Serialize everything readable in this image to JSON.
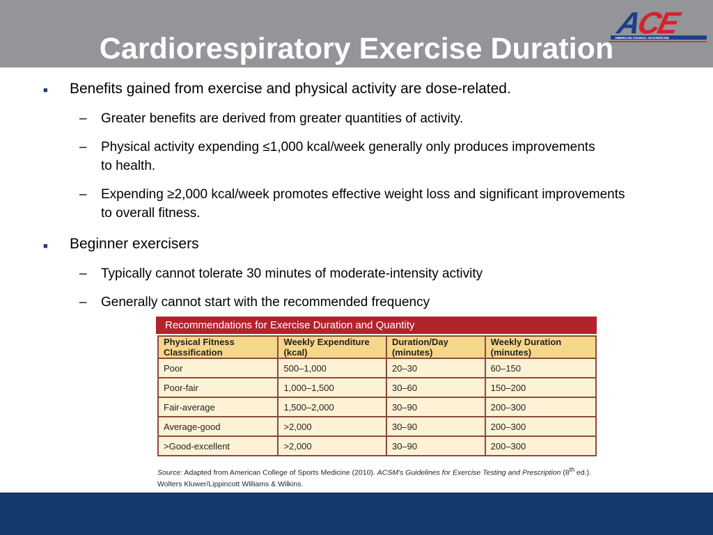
{
  "slide": {
    "title": "Cardiorespiratory Exercise Duration",
    "logo_text": "ACE",
    "logo_tagline": "AMERICAN COUNCIL ON EXERCISE"
  },
  "bullets": [
    {
      "text": "Benefits gained from exercise and physical activity are dose-related.",
      "sub": [
        "Greater benefits are derived from greater quantities of activity.",
        "Physical activity expending ≤1,000 kcal/week generally only produces improvements to health.",
        "Expending ≥2,000 kcal/week promotes effective weight loss and significant improvements to overall fitness."
      ]
    },
    {
      "text": "Beginner exercisers",
      "sub": [
        "Typically cannot tolerate 30 minutes of moderate-intensity activity",
        "Generally cannot start with the recommended frequency"
      ]
    }
  ],
  "table": {
    "title": "Recommendations for Exercise Duration and Quantity",
    "headers": [
      "Physical Fitness Classification",
      "Weekly Expenditure (kcal)",
      "Duration/Day (minutes)",
      "Weekly Duration (minutes)"
    ],
    "rows": [
      [
        "Poor",
        "500–1,000",
        "20–30",
        "60–150"
      ],
      [
        "Poor-fair",
        "1,000–1,500",
        "30–60",
        "150–200"
      ],
      [
        "Fair-average",
        "1,500–2,000",
        "30–90",
        "200–300"
      ],
      [
        "Average-good",
        ">2,000",
        "30–90",
        "200–300"
      ],
      [
        ">Good-excellent",
        ">2,000",
        "30–90",
        "200–300"
      ]
    ],
    "source_label": "Source:",
    "source_text": "Adapted from American College of Sports Medicine (2010).",
    "source_book": "ACSM's Guidelines for Exercise Testing and Prescription",
    "source_edition": "(8",
    "source_sup": "th",
    "source_rest": "ed.). Wolters Kluwer/Lippincott Williams & Wilkins."
  },
  "colors": {
    "header_bg": "#939598",
    "footer_bg": "#143a6b",
    "table_title_bg": "#b3232a",
    "table_header_bg": "#f5d78c",
    "table_cell_bg": "#fdf2d6",
    "logo_blue": "#1d3f8a",
    "logo_red": "#d6202e"
  }
}
